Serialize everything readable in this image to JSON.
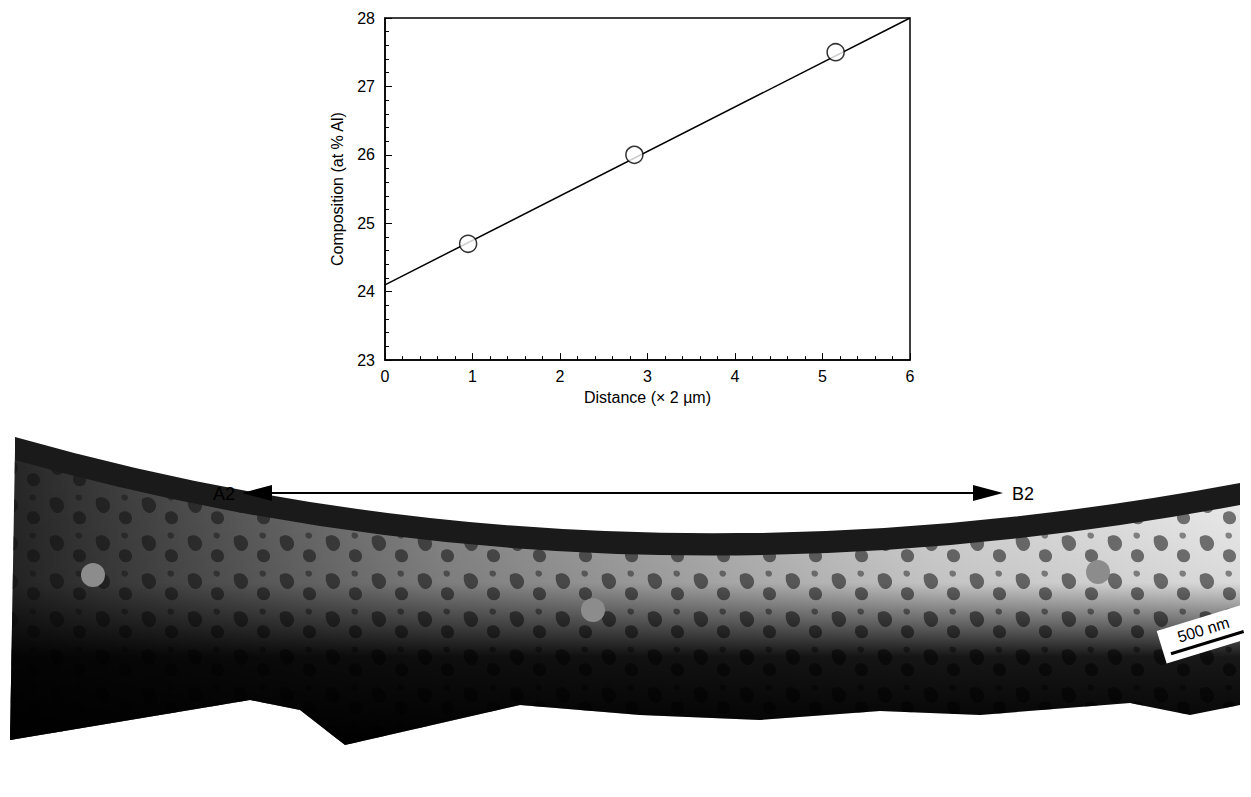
{
  "chart_data": {
    "type": "scatter",
    "x_label": "Distance (× 2 µm)",
    "y_label": "Composition (at % Al)",
    "xlim": [
      0,
      6
    ],
    "xticks": [
      0,
      1,
      2,
      3,
      4,
      5,
      6
    ],
    "ylim": [
      23,
      28
    ],
    "yticks": [
      23,
      24,
      25,
      26,
      27,
      28
    ],
    "grid": false,
    "series": [
      {
        "type": "scatter",
        "marker": "circle",
        "color": "#000000",
        "x": [
          0.95,
          2.85,
          5.15
        ],
        "values": [
          24.7,
          26.0,
          27.5
        ]
      },
      {
        "type": "line",
        "line_style": "solid",
        "color": "#000000",
        "x": [
          0,
          6
        ],
        "values": [
          24.1,
          28.0
        ]
      }
    ]
  },
  "micrograph": {
    "left_label": "A2",
    "right_label": "B2",
    "scale_bar": "500 nm"
  }
}
